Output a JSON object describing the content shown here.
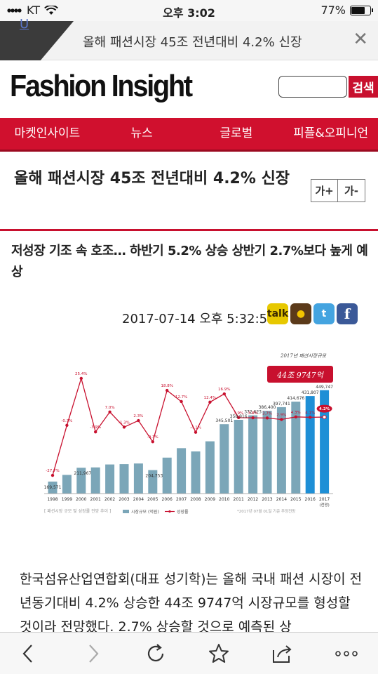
{
  "status_bar": {
    "carrier": "KT",
    "time": "오후 3:02",
    "battery": "77%",
    "battery_level": 0.77
  },
  "topbar": {
    "corner_link": "U",
    "title": "올해 패션시장 45조 전년대비 4.2% 신장"
  },
  "header": {
    "logo": "Fashion Insight",
    "search_placeholder": "",
    "search_button": "검색"
  },
  "nav": {
    "items": [
      "마켓인사이트",
      "뉴스",
      "글로벌",
      "피플&오피니언"
    ]
  },
  "article": {
    "headline": "올해 패션시장 45조 전년대비 4.2% 신장",
    "font_increase": "가+",
    "font_decrease": "가-",
    "subhead": "저성장 기조 속 호조… 하반기 5.2% 상승 상반기 2.7%보다 높게 예상",
    "date": "2017-07-14 오후 5:32:53",
    "body": "한국섬유산업연합회(대표 성기학)는 올해 국내 패션 시장이 전년동기대비 4.2% 상승한 44조 9747억 시장규모를 형성할 것이라 전망했다. 2.7% 상승할 것으로 예측된 상"
  },
  "share_icons": [
    "kakaotalk-icon",
    "kakaostory-icon",
    "twitter-icon",
    "facebook-icon"
  ],
  "chart_data": {
    "type": "bar",
    "categories": [
      "1998",
      "1999",
      "2000",
      "2001",
      "2002",
      "2003",
      "2004",
      "2005",
      "2006",
      "2007",
      "2008",
      "2009",
      "2010",
      "2011",
      "2012",
      "2013",
      "2014",
      "2015",
      "2016",
      "2017"
    ],
    "last_category_note": "(전망)",
    "series": [
      {
        "name": "시장규모 (억원)",
        "type": "bar",
        "values": [
          169571,
          null,
          211967,
          null,
          null,
          null,
          null,
          204753,
          null,
          null,
          null,
          null,
          345501,
          358916,
          372623,
          386400,
          397741,
          414676,
          431807,
          449747
        ],
        "labeled_bars": [
          0,
          2,
          7,
          12,
          13,
          14,
          15,
          16,
          17,
          18
        ]
      },
      {
        "name": "성장률",
        "type": "line",
        "values": [
          -27.7,
          -0.3,
          25.4,
          -3.9,
          7.0,
          -1.3,
          2.3,
          -9.3,
          18.8,
          12.7,
          -4.1,
          12.4,
          16.9,
          3.9,
          3.8,
          3.7,
          2.9,
          4.3,
          4.1,
          4.2
        ],
        "labels": [
          "-27.7%",
          "-0.3%",
          "25.4%",
          "-3.9%",
          "7.0%",
          "-1.3%",
          "2.3%",
          "-9.3%",
          "18.8%",
          "12.7%",
          "-4.1%",
          "12.4%",
          "16.9%",
          "3.9%",
          "3.8%",
          "3.7%",
          "2.9%",
          "4.3%",
          "4.1%",
          "4.2%"
        ]
      }
    ],
    "bar_color": "#7ba6b8",
    "highlight_bar_color": "#1e8fd6",
    "line_color": "#c8102e",
    "annotation_handwritten": "2017년 패션시장규모",
    "annotation_value": "44조 9747억",
    "source_note": "[ 패션시장 규모 및 성장률 전망 추이 ]",
    "footnote": "*2017년 07월 01일 기준 추정전망",
    "legend": [
      "시장규모 (억원)",
      "성장률"
    ],
    "legend_position": "bottom"
  }
}
